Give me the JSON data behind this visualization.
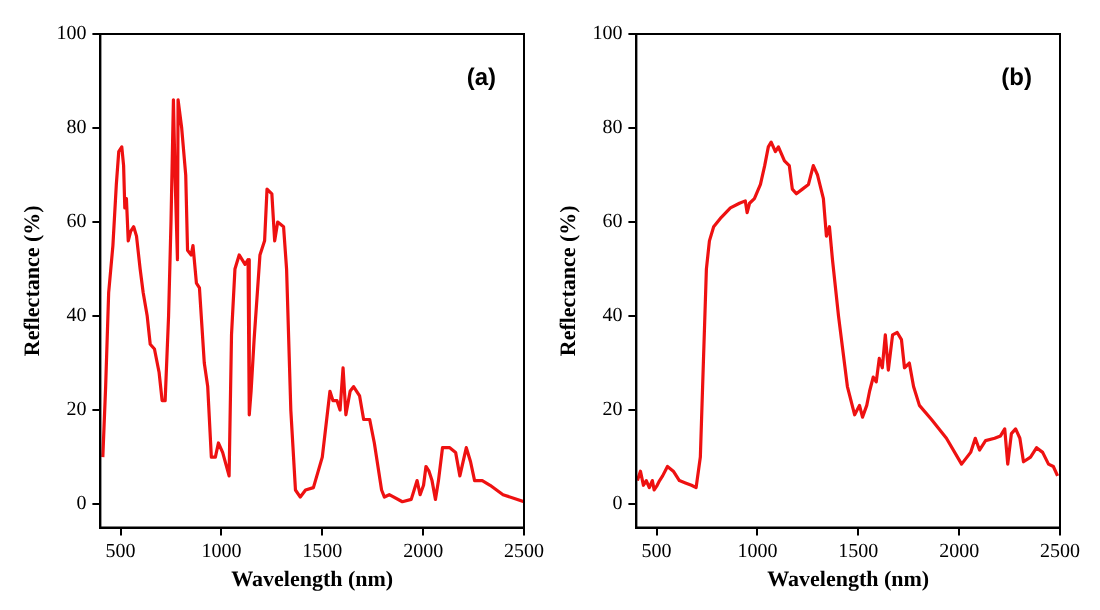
{
  "chart_data": [
    {
      "type": "line",
      "xlabel": "Wavelength (nm)",
      "ylabel": "Reflectance (%)",
      "annotations": [
        "(a)"
      ],
      "xlim": [
        400,
        2500
      ],
      "ylim": [
        -5,
        100
      ],
      "xticks": [
        500,
        1000,
        1500,
        2000,
        2500
      ],
      "yticks": [
        0,
        20,
        40,
        60,
        80,
        100
      ],
      "grid": false,
      "legend": false,
      "marker": "none",
      "series": [
        {
          "color": "#ee1111",
          "x": [
            412,
            426,
            441,
            462,
            479,
            491,
            506,
            515,
            521,
            529,
            538,
            550,
            565,
            579,
            597,
            612,
            632,
            647,
            668,
            691,
            706,
            721,
            738,
            750,
            762,
            770,
            782,
            785,
            803,
            823,
            832,
            850,
            859,
            876,
            891,
            903,
            915,
            932,
            950,
            970,
            985,
            1006,
            1038,
            1050,
            1067,
            1088,
            1117,
            1132,
            1138,
            1147,
            1162,
            1191,
            1214,
            1226,
            1250,
            1264,
            1279,
            1308,
            1323,
            1344,
            1367,
            1391,
            1417,
            1456,
            1500,
            1538,
            1553,
            1573,
            1588,
            1603,
            1617,
            1638,
            1655,
            1685,
            1705,
            1735,
            1758,
            1794,
            1808,
            1832,
            1897,
            1941,
            1970,
            1985,
            2002,
            2014,
            2029,
            2044,
            2061,
            2076,
            2096,
            2132,
            2161,
            2182,
            2214,
            2235,
            2255,
            2293,
            2332,
            2396,
            2500
          ],
          "values": [
            10,
            25,
            45,
            55,
            68,
            75,
            76,
            72,
            63,
            65,
            56,
            58,
            59,
            57,
            50,
            45,
            40,
            34,
            33,
            28,
            22,
            22,
            40,
            60,
            86,
            70,
            52,
            86,
            80,
            70,
            54,
            53,
            55,
            47,
            46,
            38,
            30,
            25,
            10,
            10,
            13,
            11,
            6,
            36,
            50,
            53,
            51,
            52,
            19,
            24,
            35,
            53,
            56,
            67,
            66,
            56,
            60,
            59,
            50,
            20,
            3,
            1.5,
            3,
            3.5,
            10,
            24,
            22,
            22,
            20,
            29,
            19,
            24,
            25,
            23,
            18,
            18,
            13,
            3,
            1.5,
            2,
            0.5,
            1,
            5,
            2,
            4,
            8,
            7,
            5,
            1,
            5,
            12,
            12,
            11,
            6,
            12,
            9,
            5,
            5,
            4,
            2,
            0.5
          ]
        }
      ]
    },
    {
      "type": "line",
      "xlabel": "Wavelength (nm)",
      "ylabel": "Reflectance (%)",
      "annotations": [
        "(b)"
      ],
      "xlim": [
        400,
        2500
      ],
      "ylim": [
        -5,
        100
      ],
      "xticks": [
        500,
        1000,
        1500,
        2000,
        2500
      ],
      "yticks": [
        0,
        20,
        40,
        60,
        80,
        100
      ],
      "grid": false,
      "legend": false,
      "marker": "none",
      "series": [
        {
          "color": "#ee1111",
          "x": [
            405,
            420,
            435,
            449,
            464,
            479,
            488,
            503,
            515,
            530,
            554,
            583,
            613,
            643,
            673,
            696,
            717,
            732,
            747,
            762,
            783,
            821,
            866,
            911,
            940,
            949,
            961,
            985,
            1015,
            1036,
            1054,
            1068,
            1089,
            1104,
            1134,
            1158,
            1173,
            1193,
            1223,
            1253,
            1277,
            1298,
            1327,
            1342,
            1357,
            1372,
            1402,
            1446,
            1482,
            1506,
            1521,
            1542,
            1556,
            1574,
            1589,
            1604,
            1619,
            1634,
            1649,
            1670,
            1693,
            1714,
            1729,
            1753,
            1774,
            1803,
            1863,
            1937,
            2012,
            2057,
            2080,
            2101,
            2131,
            2176,
            2205,
            2226,
            2241,
            2259,
            2280,
            2301,
            2319,
            2354,
            2384,
            2414,
            2443,
            2467,
            2488
          ],
          "values": [
            5,
            7,
            4,
            5,
            3.5,
            5,
            3,
            4,
            5,
            6,
            8,
            7,
            5,
            4.5,
            4,
            3.5,
            10,
            30,
            50,
            56,
            59,
            61,
            63,
            64,
            64.5,
            62,
            64,
            65,
            68,
            72,
            76,
            77,
            75,
            76,
            73,
            72,
            67,
            66,
            67,
            68,
            72,
            70,
            65,
            57,
            59,
            52,
            40,
            25,
            19,
            21,
            18.5,
            21,
            24,
            27,
            26,
            31,
            29,
            36,
            28.5,
            36,
            36.5,
            35,
            29,
            30,
            25,
            21,
            18,
            14,
            8.5,
            11,
            14,
            11.5,
            13.5,
            14,
            14.5,
            16,
            8.5,
            15,
            16,
            14,
            9,
            10,
            12,
            11,
            8.5,
            8,
            6
          ]
        }
      ]
    }
  ]
}
